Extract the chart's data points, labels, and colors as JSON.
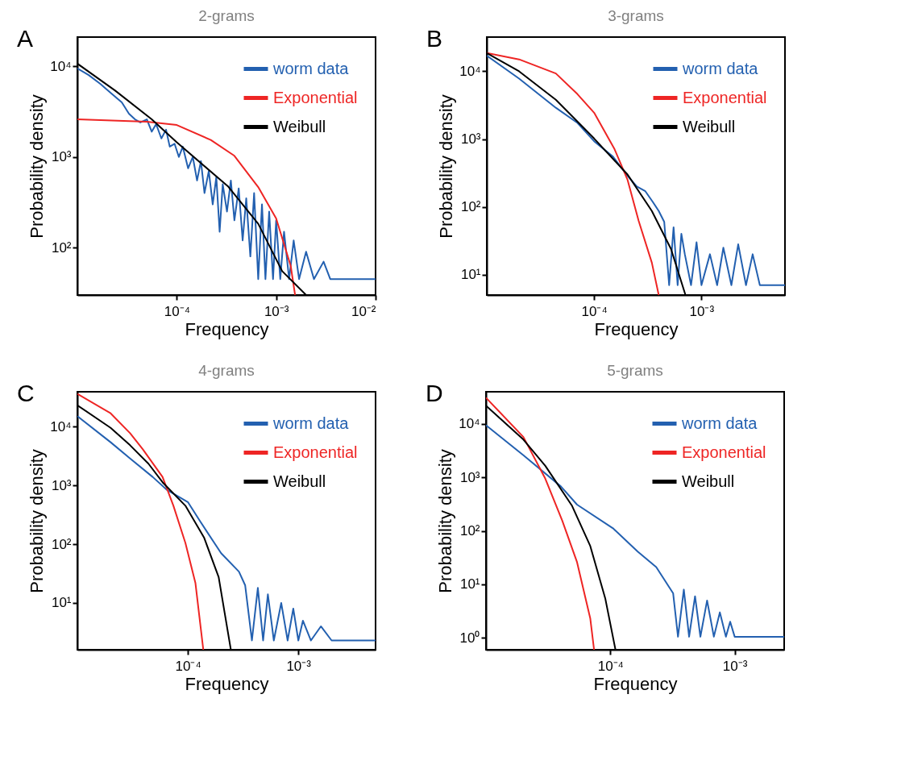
{
  "chart_data": [
    {
      "type": "line",
      "title": "2-grams",
      "xlabel": "Frequency",
      "ylabel": "Probability density",
      "log": "xy",
      "legend": "top right",
      "annotations": [
        "A"
      ],
      "xlim": [
        1e-05,
        0.01
      ],
      "ylim": [
        30,
        21000
      ],
      "xticks": [
        {
          "value": 0.0001,
          "label": "10⁻⁴"
        },
        {
          "value": 0.001,
          "label": "10⁻³"
        },
        {
          "value": 0.01,
          "label": "10⁻²"
        }
      ],
      "yticks": [
        {
          "value": 100,
          "label": "10²"
        },
        {
          "value": 1000,
          "label": "10³"
        },
        {
          "value": 10000,
          "label": "10⁴"
        }
      ],
      "series": [
        {
          "name": "worm data",
          "color": "#2360b0",
          "x": [
            1e-05,
            1.3e-05,
            1.7e-05,
            2.2e-05,
            2.8e-05,
            3.3e-05,
            3.8e-05,
            4.3e-05,
            5e-05,
            5.6e-05,
            6.2e-05,
            7e-05,
            7.8e-05,
            8.5e-05,
            9.5e-05,
            0.000105,
            0.000115,
            0.00013,
            0.000145,
            0.00016,
            0.000175,
            0.00019,
            0.00021,
            0.00023,
            0.00025,
            0.00027,
            0.00029,
            0.00032,
            0.00035,
            0.00038,
            0.00042,
            0.00046,
            0.0005,
            0.00055,
            0.0006,
            0.00066,
            0.00072,
            0.00078,
            0.00085,
            0.00093,
            0.001,
            0.0011,
            0.0012,
            0.00135,
            0.0015,
            0.0017,
            0.002,
            0.0024,
            0.003,
            0.0035,
            0.005,
            0.007,
            0.01
          ],
          "values": [
            9500,
            8000,
            6400,
            5000,
            4000,
            3000,
            2600,
            2400,
            2600,
            1900,
            2300,
            1600,
            2000,
            1300,
            1400,
            1000,
            1300,
            750,
            1000,
            550,
            900,
            400,
            700,
            300,
            600,
            150,
            500,
            250,
            550,
            200,
            450,
            120,
            350,
            80,
            400,
            45,
            300,
            45,
            250,
            45,
            200,
            45,
            150,
            45,
            120,
            45,
            90,
            45,
            70,
            45,
            45,
            45,
            45
          ]
        },
        {
          "name": "Exponential",
          "color": "#ee2524",
          "x": [
            1e-05,
            5e-05,
            0.0001,
            0.00022,
            0.00038,
            0.00066,
            0.001,
            0.0014,
            0.00155
          ],
          "values": [
            2600,
            2450,
            2250,
            1540,
            1030,
            465,
            210,
            63,
            30
          ]
        },
        {
          "name": "Weibull",
          "color": "#000000",
          "x": [
            1e-05,
            2.4e-05,
            5.6e-05,
            0.0001,
            0.00033,
            0.00066,
            0.00115,
            0.002
          ],
          "values": [
            10700,
            5400,
            2600,
            1450,
            470,
            183,
            55,
            30
          ]
        }
      ]
    },
    {
      "type": "line",
      "title": "3-grams",
      "xlabel": "Frequency",
      "ylabel": "Probability density",
      "log": "xy",
      "legend": "top right",
      "annotations": [
        "B"
      ],
      "xlim": [
        1e-05,
        0.006
      ],
      "ylim": [
        5,
        32000
      ],
      "xticks": [
        {
          "value": 0.0001,
          "label": "10⁻⁴"
        },
        {
          "value": 0.001,
          "label": "10⁻³"
        }
      ],
      "yticks": [
        {
          "value": 10,
          "label": "10¹"
        },
        {
          "value": 100,
          "label": "10²"
        },
        {
          "value": 1000,
          "label": "10³"
        },
        {
          "value": 10000,
          "label": "10⁴"
        }
      ],
      "series": [
        {
          "name": "worm data",
          "color": "#2360b0",
          "x": [
            1e-05,
            2e-05,
            4.4e-05,
            7e-05,
            0.0001,
            0.00015,
            0.0002,
            0.00025,
            0.0003,
            0.00035,
            0.0004,
            0.00045,
            0.0005,
            0.00055,
            0.0006,
            0.00065,
            0.0007,
            0.0008,
            0.0009,
            0.001,
            0.0012,
            0.0014,
            0.0016,
            0.0019,
            0.0022,
            0.0026,
            0.003,
            0.0035,
            0.0045,
            0.006
          ],
          "values": [
            17000,
            7800,
            2900,
            1730,
            930,
            550,
            300,
            200,
            170,
            120,
            87,
            60,
            7,
            50,
            7,
            40,
            20,
            7,
            30,
            7,
            20,
            7,
            25,
            7,
            28,
            7,
            20,
            7,
            7,
            7
          ]
        },
        {
          "name": "Exponential",
          "color": "#ee2524",
          "x": [
            1e-05,
            2e-05,
            4.4e-05,
            7e-05,
            0.0001,
            0.000155,
            0.000205,
            0.00026,
            0.000345,
            0.0004
          ],
          "values": [
            18600,
            15000,
            9300,
            4600,
            2450,
            710,
            250,
            62,
            15,
            5
          ]
        },
        {
          "name": "Weibull",
          "color": "#000000",
          "x": [
            1e-05,
            2e-05,
            4.4e-05,
            0.0001,
            0.000205,
            0.000345,
            0.00052,
            0.00071
          ],
          "values": [
            18600,
            10000,
            3800,
            1020,
            300,
            87,
            24,
            5
          ]
        }
      ]
    },
    {
      "type": "line",
      "title": "4-grams",
      "xlabel": "Frequency",
      "ylabel": "Probability density",
      "log": "xy",
      "legend": "top right",
      "annotations": [
        "C"
      ],
      "xlim": [
        1e-05,
        0.005
      ],
      "ylim": [
        1.6,
        39000
      ],
      "xticks": [
        {
          "value": 0.0001,
          "label": "10⁻⁴"
        },
        {
          "value": 0.001,
          "label": "10⁻³"
        }
      ],
      "yticks": [
        {
          "value": 10,
          "label": "10¹"
        },
        {
          "value": 100,
          "label": "10²"
        },
        {
          "value": 1000,
          "label": "10³"
        },
        {
          "value": 10000,
          "label": "10⁴"
        }
      ],
      "series": [
        {
          "name": "worm data",
          "color": "#2360b0",
          "x": [
            1e-05,
            2e-05,
            3e-05,
            4.8e-05,
            6.5e-05,
            0.0001,
            0.00013,
            0.0002,
            0.00029,
            0.00033,
            0.00038,
            0.00043,
            0.00048,
            0.00053,
            0.0006,
            0.0007,
            0.0008,
            0.0009,
            0.001,
            0.0011,
            0.0013,
            0.0016,
            0.002,
            0.0025,
            0.0032,
            0.004,
            0.005
          ],
          "values": [
            15000,
            5400,
            2870,
            1390,
            830,
            520,
            240,
            70,
            34,
            20,
            2.3,
            18,
            2.3,
            14,
            2.3,
            10,
            2.3,
            8,
            2.3,
            5,
            2.3,
            4,
            2.3,
            2.3,
            2.3,
            2.3,
            2.3
          ]
        },
        {
          "name": "Exponential",
          "color": "#ee2524",
          "x": [
            1e-05,
            2e-05,
            3e-05,
            3.9e-05,
            5.9e-05,
            7.4e-05,
            9.5e-05,
            0.000117,
            0.000138
          ],
          "values": [
            36000,
            16800,
            7700,
            4130,
            1390,
            450,
            105,
            22,
            1.6
          ]
        },
        {
          "name": "Weibull",
          "color": "#000000",
          "x": [
            1e-05,
            2e-05,
            3e-05,
            4.4e-05,
            5.9e-05,
            9.5e-05,
            0.00014,
            0.00019,
            0.000245
          ],
          "values": [
            23000,
            9500,
            4800,
            2330,
            1130,
            450,
            130,
            27.5,
            1.6
          ]
        }
      ]
    },
    {
      "type": "line",
      "title": "5-grams",
      "xlabel": "Frequency",
      "ylabel": "Probability density",
      "log": "xy",
      "legend": "top right",
      "annotations": [
        "D"
      ],
      "xlim": [
        1e-05,
        0.0025
      ],
      "ylim": [
        0.6,
        40000
      ],
      "xticks": [
        {
          "value": 0.0001,
          "label": "10⁻⁴"
        },
        {
          "value": 0.001,
          "label": "10⁻³"
        }
      ],
      "yticks": [
        {
          "value": 1,
          "label": "10⁰"
        },
        {
          "value": 10,
          "label": "10¹"
        },
        {
          "value": 100,
          "label": "10²"
        },
        {
          "value": 1000,
          "label": "10³"
        },
        {
          "value": 10000,
          "label": "10⁴"
        }
      ],
      "series": [
        {
          "name": "worm data",
          "color": "#2360b0",
          "x": [
            1e-05,
            2e-05,
            4e-05,
            5.4e-05,
            0.000105,
            0.000166,
            0.000234,
            0.00032,
            0.00035,
            0.00039,
            0.00043,
            0.00048,
            0.00053,
            0.0006,
            0.00068,
            0.00076,
            0.00085,
            0.00092,
            0.001,
            0.0013,
            0.0017,
            0.0025
          ],
          "values": [
            9500,
            2600,
            680,
            310,
            112,
            41,
            21,
            6.8,
            1.05,
            8,
            1.05,
            6,
            1.05,
            5,
            1.05,
            3,
            1.05,
            2,
            1.05,
            1.05,
            1.05,
            1.05
          ]
        },
        {
          "name": "Exponential",
          "color": "#ee2524",
          "x": [
            1e-05,
            2e-05,
            3e-05,
            4.1e-05,
            5.4e-05,
            6.9e-05,
            7.4e-05
          ],
          "values": [
            31000,
            5700,
            950,
            157,
            26,
            2.3,
            0.6
          ]
        },
        {
          "name": "Weibull",
          "color": "#000000",
          "x": [
            1e-05,
            2e-05,
            3e-05,
            4.9e-05,
            6.9e-05,
            9.1e-05,
            0.00011
          ],
          "values": [
            22000,
            5100,
            1650,
            300,
            52,
            5.5,
            0.6
          ]
        }
      ]
    }
  ]
}
